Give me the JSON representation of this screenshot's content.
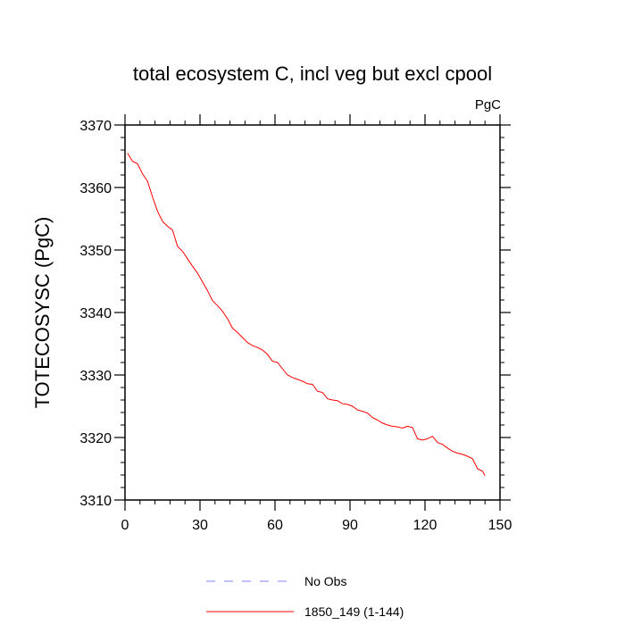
{
  "chart_data": {
    "type": "line",
    "title": "total ecosystem C, incl veg but excl cpool",
    "units_label": "PgC",
    "ylabel": "TOTECOSYSC  (PgC)",
    "xlabel": "",
    "xlim": [
      0,
      150
    ],
    "ylim": [
      3310,
      3370
    ],
    "x_ticks": [
      0,
      30,
      60,
      90,
      120,
      150
    ],
    "y_ticks": [
      3310,
      3320,
      3330,
      3340,
      3350,
      3360,
      3370
    ],
    "x_tick_labels": [
      "0",
      "30",
      "60",
      "90",
      "120",
      "150"
    ],
    "y_tick_labels": [
      "3310",
      "3320",
      "3330",
      "3340",
      "3350",
      "3360",
      "3370"
    ],
    "grid": false,
    "legend_position": "bottom",
    "legend": [
      {
        "label": "No Obs",
        "color": "#8080ff",
        "style": "dashed"
      },
      {
        "label": "1850_149 (1-144)",
        "color": "#ff0000",
        "style": "solid"
      }
    ],
    "series": [
      {
        "name": "1850_149 (1-144)",
        "color": "#ff0000",
        "x": [
          1,
          3,
          5,
          7,
          9,
          11,
          13,
          15,
          17,
          19,
          21,
          23,
          25,
          27,
          29,
          31,
          33,
          35,
          37,
          39,
          41,
          43,
          45,
          47,
          49,
          51,
          53,
          55,
          57,
          59,
          61,
          63,
          65,
          67,
          69,
          71,
          73,
          75,
          77,
          79,
          81,
          83,
          85,
          87,
          89,
          91,
          93,
          95,
          97,
          99,
          101,
          103,
          105,
          107,
          109,
          111,
          113,
          115,
          117,
          119,
          121,
          123,
          125,
          127,
          129,
          131,
          133,
          135,
          137,
          139,
          141,
          143,
          144
        ],
        "values": [
          3365.5,
          3364.2,
          3363.8,
          3362.2,
          3361.0,
          3358.5,
          3356.2,
          3354.6,
          3353.8,
          3353.2,
          3350.6,
          3349.8,
          3348.6,
          3347.4,
          3346.3,
          3344.9,
          3343.5,
          3341.9,
          3341.1,
          3340.2,
          3339.0,
          3337.5,
          3336.8,
          3336.0,
          3335.2,
          3334.7,
          3334.4,
          3334.0,
          3333.3,
          3332.2,
          3332.0,
          3331.0,
          3330.0,
          3329.6,
          3329.3,
          3329.0,
          3328.6,
          3328.5,
          3327.4,
          3327.2,
          3326.2,
          3326.0,
          3325.9,
          3325.4,
          3325.3,
          3325.0,
          3324.4,
          3324.2,
          3323.9,
          3323.2,
          3322.8,
          3322.3,
          3322.0,
          3321.8,
          3321.7,
          3321.5,
          3321.8,
          3321.6,
          3319.8,
          3319.6,
          3319.8,
          3320.2,
          3319.2,
          3318.9,
          3318.3,
          3317.8,
          3317.5,
          3317.3,
          3317.0,
          3316.6,
          3315.0,
          3314.6,
          3313.9
        ]
      }
    ]
  }
}
